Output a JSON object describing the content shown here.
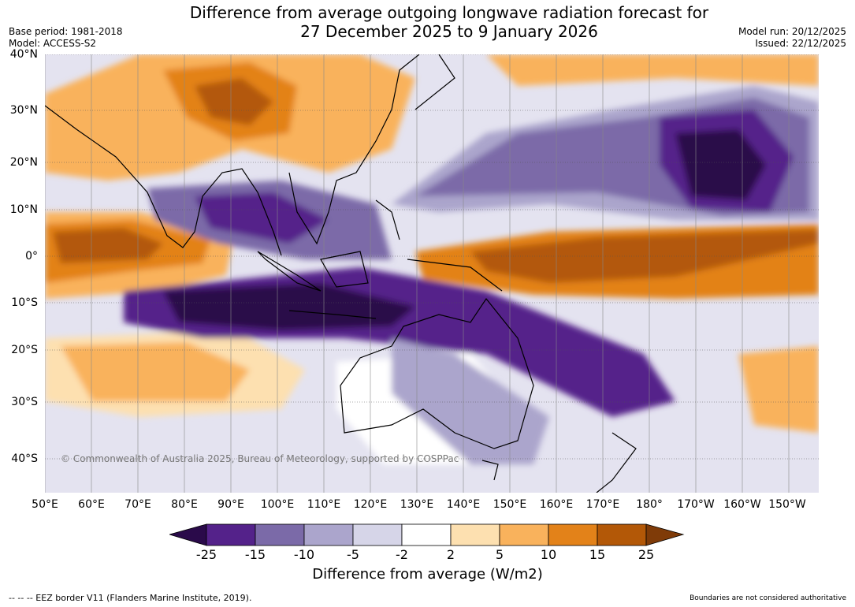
{
  "title_line1": "Difference from average outgoing longwave radiation forecast for",
  "title_line2": "27 December 2025 to 9 January 2026",
  "meta_left": {
    "base_period": "Base period: 1981-2018",
    "model": "Model: ACCESS-S2"
  },
  "meta_right": {
    "model_run": "Model run: 20/12/2025",
    "issued": "Issued: 22/12/2025"
  },
  "map": {
    "lat_labels": [
      "40°N",
      "30°N",
      "20°N",
      "10°N",
      "0°",
      "10°S",
      "20°S",
      "30°S",
      "40°S"
    ],
    "lon_labels": [
      "50°E",
      "60°E",
      "70°E",
      "80°E",
      "90°E",
      "100°E",
      "110°E",
      "120°E",
      "130°E",
      "140°E",
      "150°E",
      "160°E",
      "170°E",
      "180°",
      "170°W",
      "160°W",
      "150°W"
    ],
    "copyright": "© Commonwealth of Australia 2025, Bureau of Meteorology, supported by COSPPac"
  },
  "colorbar": {
    "ticks": [
      "-25",
      "-15",
      "-10",
      "-5",
      "-2",
      "2",
      "5",
      "10",
      "15",
      "25"
    ],
    "colors": [
      "#2a0a4a",
      "#54228a",
      "#7b6aa8",
      "#aba5cc",
      "#d6d5e8",
      "#ffffff",
      "#fde0b0",
      "#f9b25c",
      "#e38219",
      "#b35807",
      "#7f3b08"
    ],
    "label": "Difference from average (W/m2)"
  },
  "footer": {
    "left": "--  --  -- EEZ border V11 (Flanders Marine Institute, 2019).",
    "right": "Boundaries are not considered authoritative"
  }
}
